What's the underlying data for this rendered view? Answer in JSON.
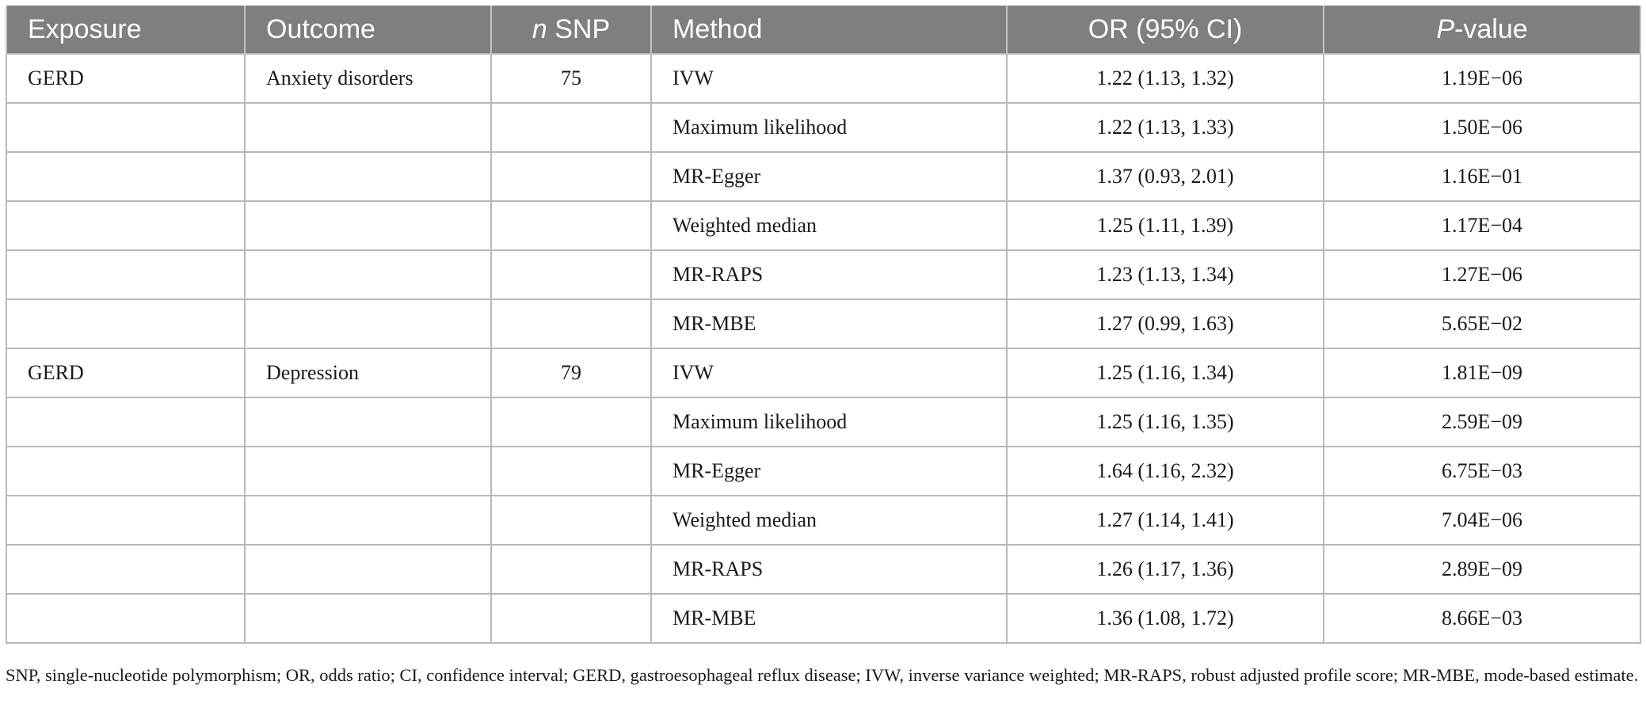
{
  "table": {
    "headers": {
      "exposure": "Exposure",
      "outcome": "Outcome",
      "nsnp_italic": "n",
      "nsnp_rest": " SNP",
      "method": "Method",
      "or": "OR (95% CI)",
      "pvalue_italic": "P",
      "pvalue_rest": "-value"
    },
    "rows": [
      {
        "exposure": "GERD",
        "outcome": "Anxiety disorders",
        "nsnp": "75",
        "method": "IVW",
        "or": "1.22 (1.13, 1.32)",
        "p": "1.19E−06"
      },
      {
        "exposure": "",
        "outcome": "",
        "nsnp": "",
        "method": "Maximum likelihood",
        "or": "1.22 (1.13, 1.33)",
        "p": "1.50E−06"
      },
      {
        "exposure": "",
        "outcome": "",
        "nsnp": "",
        "method": "MR-Egger",
        "or": "1.37 (0.93, 2.01)",
        "p": "1.16E−01"
      },
      {
        "exposure": "",
        "outcome": "",
        "nsnp": "",
        "method": "Weighted median",
        "or": "1.25 (1.11, 1.39)",
        "p": "1.17E−04"
      },
      {
        "exposure": "",
        "outcome": "",
        "nsnp": "",
        "method": "MR-RAPS",
        "or": "1.23 (1.13, 1.34)",
        "p": "1.27E−06"
      },
      {
        "exposure": "",
        "outcome": "",
        "nsnp": "",
        "method": "MR-MBE",
        "or": "1.27 (0.99, 1.63)",
        "p": "5.65E−02"
      },
      {
        "exposure": "GERD",
        "outcome": "Depression",
        "nsnp": "79",
        "method": "IVW",
        "or": "1.25 (1.16, 1.34)",
        "p": "1.81E−09"
      },
      {
        "exposure": "",
        "outcome": "",
        "nsnp": "",
        "method": "Maximum likelihood",
        "or": "1.25 (1.16, 1.35)",
        "p": "2.59E−09"
      },
      {
        "exposure": "",
        "outcome": "",
        "nsnp": "",
        "method": "MR-Egger",
        "or": "1.64 (1.16, 2.32)",
        "p": "6.75E−03"
      },
      {
        "exposure": "",
        "outcome": "",
        "nsnp": "",
        "method": "Weighted median",
        "or": "1.27 (1.14, 1.41)",
        "p": "7.04E−06"
      },
      {
        "exposure": "",
        "outcome": "",
        "nsnp": "",
        "method": "MR-RAPS",
        "or": "1.26 (1.17, 1.36)",
        "p": "2.89E−09"
      },
      {
        "exposure": "",
        "outcome": "",
        "nsnp": "",
        "method": "MR-MBE",
        "or": "1.36 (1.08, 1.72)",
        "p": "8.66E−03"
      }
    ]
  },
  "footnote": "SNP, single-nucleotide polymorphism; OR, odds ratio; CI, confidence interval; GERD, gastroesophageal reflux disease; IVW, inverse variance weighted; MR-RAPS, robust adjusted profile score; MR-MBE, mode-based estimate.",
  "colors": {
    "header_bg": "#7f7f7f",
    "header_text": "#ffffff",
    "grid_line": "#b8b8b8"
  }
}
